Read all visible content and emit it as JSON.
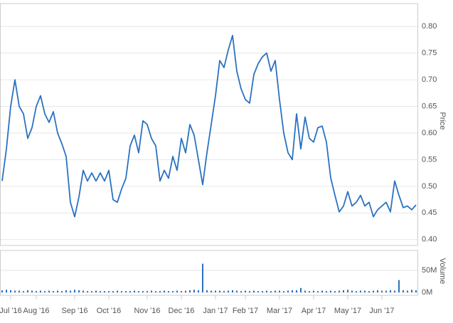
{
  "chart_data": [
    {
      "type": "line",
      "y_label": "Price",
      "color": "#2a72c0",
      "values": [
        0.51,
        0.57,
        0.65,
        0.7,
        0.65,
        0.636,
        0.59,
        0.61,
        0.65,
        0.67,
        0.636,
        0.62,
        0.64,
        0.6,
        0.58,
        0.556,
        0.47,
        0.443,
        0.48,
        0.53,
        0.51,
        0.525,
        0.51,
        0.525,
        0.51,
        0.53,
        0.475,
        0.47,
        0.495,
        0.515,
        0.576,
        0.596,
        0.563,
        0.623,
        0.616,
        0.59,
        0.576,
        0.51,
        0.53,
        0.515,
        0.556,
        0.53,
        0.59,
        0.563,
        0.616,
        0.596,
        0.55,
        0.503,
        0.563,
        0.616,
        0.67,
        0.736,
        0.723,
        0.756,
        0.783,
        0.716,
        0.683,
        0.663,
        0.656,
        0.71,
        0.73,
        0.743,
        0.75,
        0.716,
        0.736,
        0.663,
        0.6,
        0.563,
        0.55,
        0.636,
        0.57,
        0.63,
        0.59,
        0.583,
        0.61,
        0.613,
        0.583,
        0.516,
        0.483,
        0.452,
        0.463,
        0.49,
        0.463,
        0.47,
        0.483,
        0.463,
        0.47,
        0.443,
        0.456,
        0.463,
        0.47,
        0.452,
        0.51,
        0.483,
        0.46,
        0.463,
        0.456,
        0.465
      ],
      "ylim": [
        0.389,
        0.843
      ],
      "yticks": [
        {
          "value": 0.4,
          "label": "0.40"
        },
        0.45,
        {
          "value": 0.5,
          "label": "0.50"
        },
        0.55,
        {
          "value": 0.6,
          "label": "0.60"
        },
        0.65,
        {
          "value": 0.7,
          "label": "0.70"
        },
        0.75,
        {
          "value": 0.8,
          "label": "0.80"
        }
      ],
      "grid": true
    },
    {
      "type": "bar",
      "y_label": "Volume",
      "color": "#2a72c0",
      "categories": [
        null,
        null,
        "Jul '16",
        null,
        null,
        null,
        null,
        null,
        "Aug '16",
        null,
        null,
        null,
        null,
        null,
        null,
        null,
        null,
        "Sep '16",
        null,
        null,
        null,
        null,
        null,
        null,
        null,
        "Oct '16",
        null,
        null,
        null,
        null,
        null,
        null,
        null,
        null,
        "Nov '16",
        null,
        null,
        null,
        null,
        null,
        null,
        null,
        "Dec '16",
        null,
        null,
        null,
        null,
        null,
        null,
        null,
        "Jan '17",
        null,
        null,
        null,
        null,
        null,
        null,
        "Feb '17",
        null,
        null,
        null,
        null,
        null,
        null,
        null,
        "Mar '17",
        null,
        null,
        null,
        null,
        null,
        null,
        null,
        "Apr '17",
        null,
        null,
        null,
        null,
        null,
        null,
        null,
        "May '17",
        null,
        null,
        null,
        null,
        null,
        null,
        null,
        "Jun '17",
        null,
        null,
        null,
        null,
        null,
        null,
        null,
        null
      ],
      "values": [
        5,
        6,
        5,
        4,
        4,
        3,
        5,
        4,
        3,
        4,
        3,
        4,
        3,
        4,
        3,
        5,
        4,
        6,
        5,
        4,
        3,
        3,
        4,
        3,
        3,
        3,
        3,
        4,
        3,
        3,
        3,
        4,
        3,
        3,
        3,
        4,
        3,
        3,
        4,
        3,
        3,
        4,
        3,
        4,
        5,
        6,
        5,
        65,
        5,
        4,
        4,
        4,
        3,
        4,
        5,
        4,
        3,
        4,
        3,
        4,
        3,
        3,
        4,
        3,
        4,
        4,
        3,
        4,
        5,
        5,
        10,
        4,
        3,
        4,
        3,
        4,
        3,
        4,
        3,
        4,
        5,
        6,
        4,
        3,
        4,
        4,
        3,
        4,
        5,
        4,
        4,
        5,
        4,
        28,
        5,
        4,
        6,
        5
      ],
      "ylim": [
        0,
        95
      ],
      "yticks": [
        {
          "value": 0,
          "label": "0M"
        },
        {
          "value": 50,
          "label": "50M"
        }
      ],
      "grid": true
    }
  ]
}
